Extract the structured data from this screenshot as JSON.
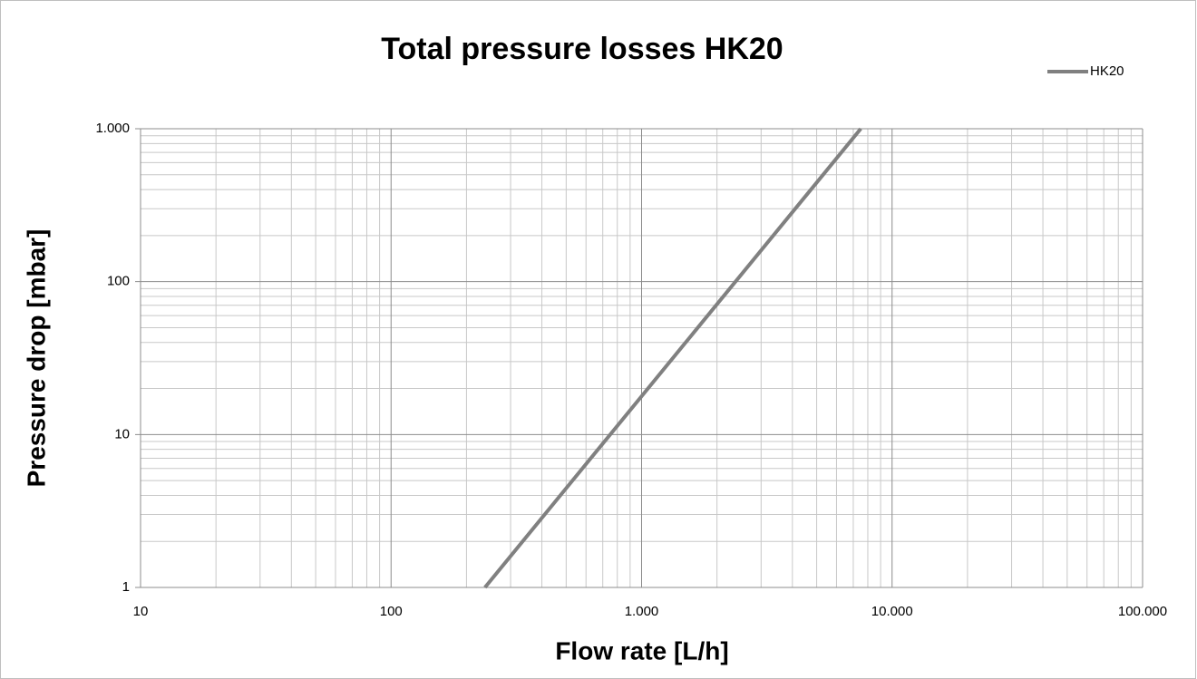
{
  "chart_data": {
    "type": "line",
    "title": "Total pressure losses HK20",
    "xlabel": "Flow rate [L/h]",
    "ylabel": "Pressure drop [mbar]",
    "x": [
      237,
      1000,
      7500
    ],
    "series": [
      {
        "name": "HK20",
        "color": "#808080",
        "values": [
          1,
          17.8,
          1000
        ]
      }
    ],
    "xscale": "log",
    "yscale": "log",
    "xlim": [
      10,
      100000
    ],
    "ylim": [
      1,
      1000
    ],
    "xticks": [
      10,
      100,
      {
        "value": 1000,
        "label": "1.000"
      },
      {
        "value": 10000,
        "label": "10.000"
      },
      {
        "value": 100000,
        "label": "100.000"
      }
    ],
    "yticks": [
      1,
      10,
      100,
      {
        "value": 1000,
        "label": "1.000"
      }
    ],
    "grid": true,
    "minor_grid": true,
    "legend": "top-right"
  }
}
